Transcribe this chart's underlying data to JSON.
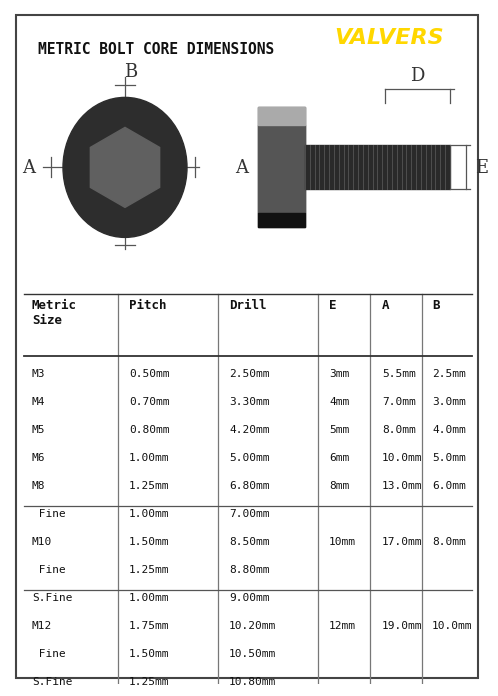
{
  "title": "METRIC BOLT CORE DIMENSIONS",
  "bg_color": "#ffffff",
  "border_color": "#444444",
  "title_color": "#111111",
  "title_fontsize": 10.5,
  "header_labels": [
    "Metric\nSize",
    "Pitch",
    "Drill",
    "E",
    "A",
    "B"
  ],
  "table_rows": [
    [
      "M3",
      "0.50mm",
      "2.50mm",
      "3mm",
      "5.5mm",
      "2.5mm"
    ],
    [
      "M4",
      "0.70mm",
      "3.30mm",
      "4mm",
      "7.0mm",
      "3.0mm"
    ],
    [
      "M5",
      "0.80mm",
      "4.20mm",
      "5mm",
      "8.0mm",
      "4.0mm"
    ],
    [
      "M6",
      "1.00mm",
      "5.00mm",
      "6mm",
      "10.0mm",
      "5.0mm"
    ],
    [
      "M8",
      "1.25mm",
      "6.80mm",
      "8mm",
      "13.0mm",
      "6.0mm"
    ],
    [
      " Fine",
      "1.00mm",
      "7.00mm",
      "",
      "",
      ""
    ],
    [
      "M10",
      "1.50mm",
      "8.50mm",
      "10mm",
      "17.0mm",
      "8.0mm"
    ],
    [
      " Fine",
      "1.25mm",
      "8.80mm",
      "",
      "",
      ""
    ],
    [
      "S.Fine",
      "1.00mm",
      "9.00mm",
      "",
      "",
      ""
    ],
    [
      "M12",
      "1.75mm",
      "10.20mm",
      "12mm",
      "19.0mm",
      "10.0mm"
    ],
    [
      " Fine",
      "1.50mm",
      "10.50mm",
      "",
      "",
      ""
    ],
    [
      "S.Fine",
      "1.25mm",
      "10.80mm",
      "",
      "",
      ""
    ]
  ],
  "group_dividers_after": [
    5,
    8
  ],
  "table_font_size": 8.0,
  "header_font_size": 9.0
}
